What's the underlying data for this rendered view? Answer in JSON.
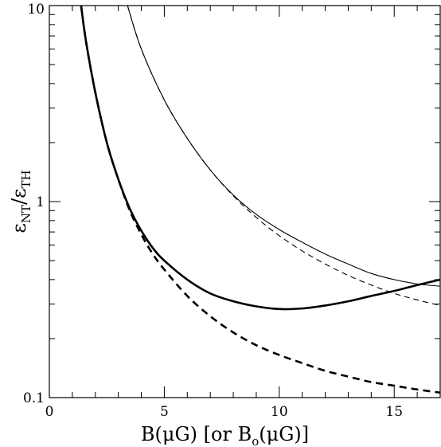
{
  "chart_data": {
    "type": "line",
    "xlabel": "B(μG) [or B",
    "xlabel_sub": "o",
    "xlabel_tail": "(μG)]",
    "ylabel_main": "ε",
    "ylabel_sub1": "NT",
    "ylabel_slash": "/ε",
    "ylabel_sub2": "TH",
    "x_scale": "linear",
    "y_scale": "log",
    "xlim": [
      0,
      17
    ],
    "ylim": [
      0.1,
      10
    ],
    "x_ticks": [
      0,
      5,
      10,
      15
    ],
    "y_ticks": [
      0.1,
      1,
      10
    ],
    "x_tick_labels": [
      "0",
      "5",
      "10",
      "15"
    ],
    "y_tick_labels": [
      "0.1",
      "1",
      "10"
    ],
    "series": [
      {
        "style": "thick-solid",
        "x": [
          1.38,
          1.6,
          2.0,
          2.5,
          3.0,
          3.5,
          4.0,
          4.5,
          5.0,
          6.0,
          7.0,
          8.0,
          9.0,
          10.0,
          11.0,
          12.0,
          13.0,
          14.0,
          15.0,
          16.0,
          17.0
        ],
        "y": [
          10.0,
          6.5,
          3.6,
          2.0,
          1.3,
          0.92,
          0.71,
          0.58,
          0.5,
          0.4,
          0.34,
          0.31,
          0.292,
          0.283,
          0.285,
          0.295,
          0.31,
          0.33,
          0.35,
          0.375,
          0.4
        ]
      },
      {
        "style": "thick-dashed",
        "x": [
          1.38,
          1.6,
          2.0,
          2.5,
          3.0,
          3.5,
          4.0,
          4.5,
          5.0,
          6.0,
          7.0,
          8.0,
          9.0,
          10.0,
          11.0,
          12.0,
          13.0,
          14.0,
          15.0,
          16.0,
          17.0
        ],
        "y": [
          10.0,
          6.5,
          3.6,
          2.0,
          1.3,
          0.9,
          0.68,
          0.54,
          0.45,
          0.33,
          0.26,
          0.215,
          0.185,
          0.165,
          0.15,
          0.137,
          0.128,
          0.12,
          0.115,
          0.11,
          0.106
        ]
      },
      {
        "style": "thin-solid",
        "x": [
          3.4,
          4.0,
          5.0,
          6.0,
          7.0,
          8.0,
          9.0,
          10.0,
          11.0,
          12.0,
          13.0,
          14.0,
          15.0,
          16.0,
          17.0
        ],
        "y": [
          10.0,
          6.0,
          3.3,
          2.1,
          1.45,
          1.08,
          0.86,
          0.72,
          0.62,
          0.54,
          0.48,
          0.43,
          0.4,
          0.38,
          0.37
        ]
      },
      {
        "style": "thin-dashed",
        "x": [
          3.4,
          4.0,
          5.0,
          6.0,
          7.0,
          8.0,
          9.0,
          10.0,
          11.0,
          12.0,
          13.0,
          14.0,
          15.0,
          16.0,
          17.0
        ],
        "y": [
          10.0,
          6.0,
          3.3,
          2.1,
          1.45,
          1.07,
          0.83,
          0.67,
          0.56,
          0.48,
          0.42,
          0.375,
          0.34,
          0.315,
          0.295
        ]
      }
    ]
  }
}
